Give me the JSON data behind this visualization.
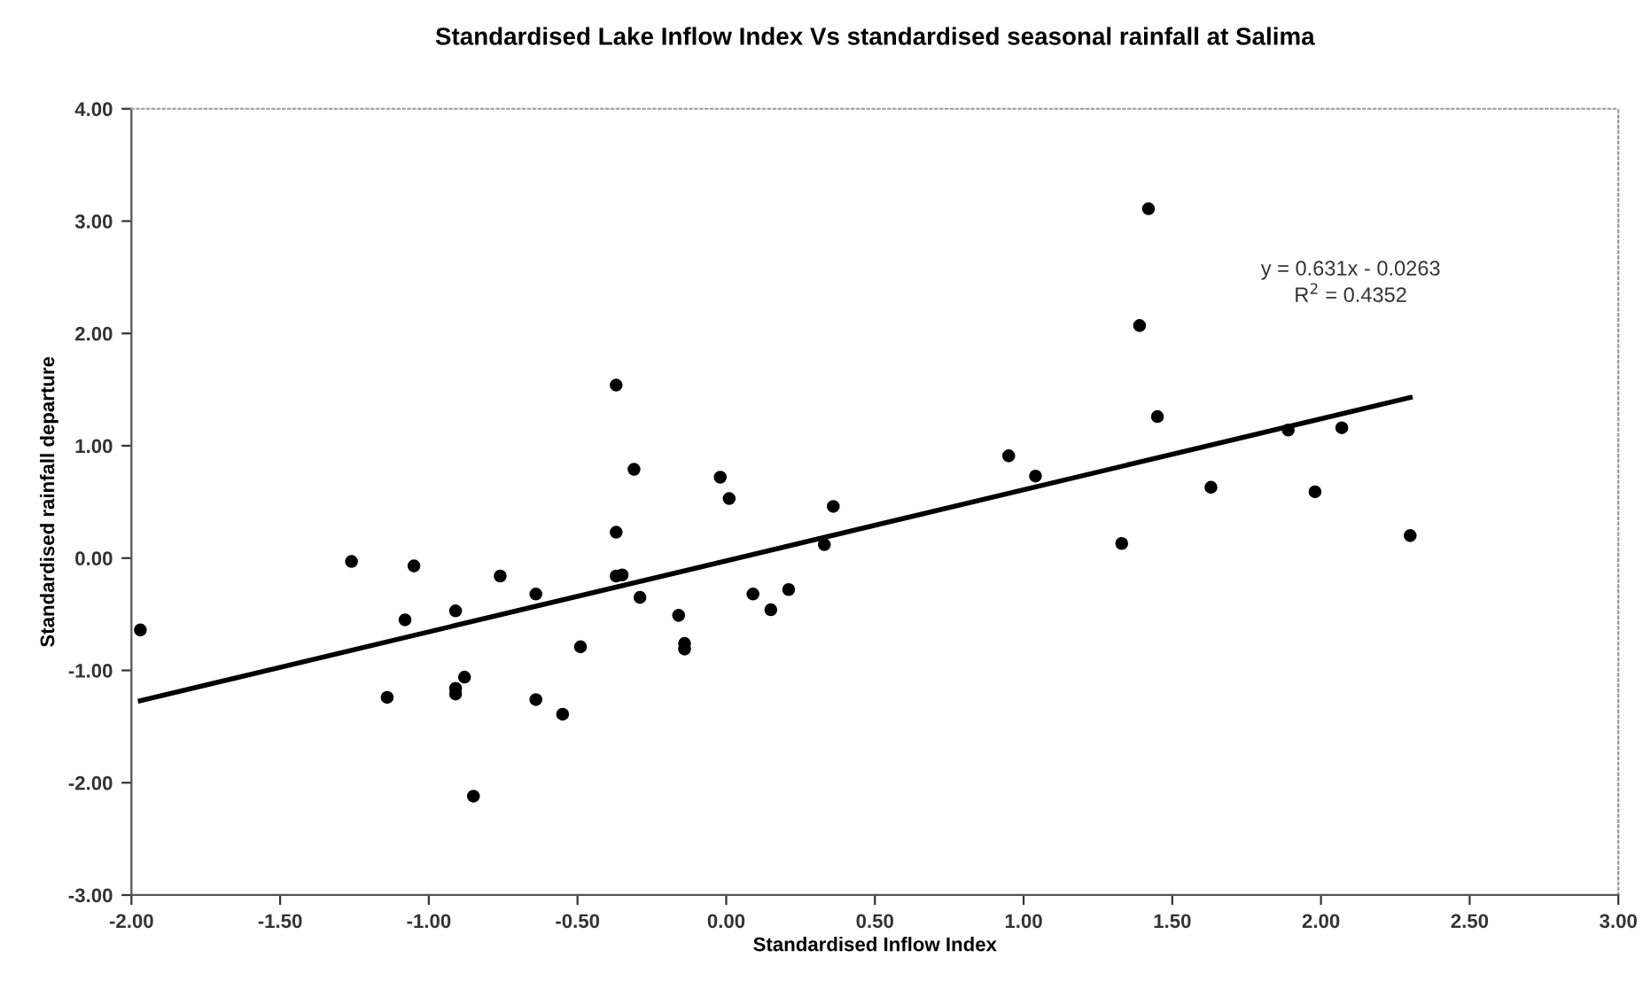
{
  "chart_data": {
    "type": "scatter",
    "title": "Standardised Lake Inflow Index Vs standardised seasonal rainfall at Salima",
    "xlabel": "Standardised Inflow Index",
    "ylabel": "Standardised rainfall departure",
    "xlim": [
      -2,
      3
    ],
    "ylim": [
      -3,
      4
    ],
    "xticks": [
      {
        "value": -2,
        "label": "-2.00"
      },
      {
        "value": -1.5,
        "label": "-1.50"
      },
      {
        "value": -1,
        "label": "-1.00"
      },
      {
        "value": -0.5,
        "label": "-0.50"
      },
      {
        "value": 0,
        "label": "0.00"
      },
      {
        "value": 0.5,
        "label": "0.50"
      },
      {
        "value": 1,
        "label": "1.00"
      },
      {
        "value": 1.5,
        "label": "1.50"
      },
      {
        "value": 2,
        "label": "2.00"
      },
      {
        "value": 2.5,
        "label": "2.50"
      },
      {
        "value": 3,
        "label": "3.00"
      }
    ],
    "yticks": [
      {
        "value": -3,
        "label": "-3.00"
      },
      {
        "value": -2,
        "label": "-2.00"
      },
      {
        "value": -1,
        "label": "-1.00"
      },
      {
        "value": 0,
        "label": "0.00"
      },
      {
        "value": 1,
        "label": "1.00"
      },
      {
        "value": 2,
        "label": "2.00"
      },
      {
        "value": 3,
        "label": "3.00"
      },
      {
        "value": 4,
        "label": "4.00"
      }
    ],
    "grid": false,
    "marker": "circle",
    "series": [
      {
        "color": "#000000",
        "x": [
          -1.97,
          -1.26,
          -1.05,
          -1.08,
          -1.14,
          -0.91,
          -0.91,
          -0.91,
          -0.88,
          -0.85,
          -0.76,
          -0.64,
          -0.64,
          -0.55,
          -0.49,
          -0.37,
          -0.31,
          -0.02,
          0.01,
          0.36,
          0.33,
          -0.37,
          -0.37,
          -0.35,
          -0.29,
          -0.16,
          -0.14,
          -0.14,
          0.09,
          0.15,
          0.21,
          1.42,
          1.39,
          1.45,
          0.95,
          1.04,
          1.33,
          1.63,
          1.89,
          2.07,
          1.98,
          2.3
        ],
        "values": [
          -0.64,
          -0.03,
          -0.07,
          -0.55,
          -1.24,
          -0.47,
          -1.16,
          -1.21,
          -1.06,
          -2.12,
          -0.16,
          -0.32,
          -1.26,
          -1.39,
          -0.79,
          1.54,
          0.79,
          0.72,
          0.53,
          0.46,
          0.12,
          0.23,
          -0.16,
          -0.15,
          -0.35,
          -0.51,
          -0.76,
          -0.81,
          -0.32,
          -0.46,
          -0.28,
          3.11,
          2.07,
          1.26,
          0.91,
          0.73,
          0.13,
          0.63,
          1.14,
          1.16,
          0.59,
          0.2
        ]
      },
      {
        "type": "line",
        "color": "#000000",
        "marker": "none",
        "line_style": "solid",
        "x": [
          -1.97,
          2.3
        ],
        "values": [
          -1.27,
          1.43
        ]
      }
    ],
    "annotations": [
      "y = 0.631x - 0.0263",
      "R$^{2}$ = 0.4352"
    ]
  }
}
